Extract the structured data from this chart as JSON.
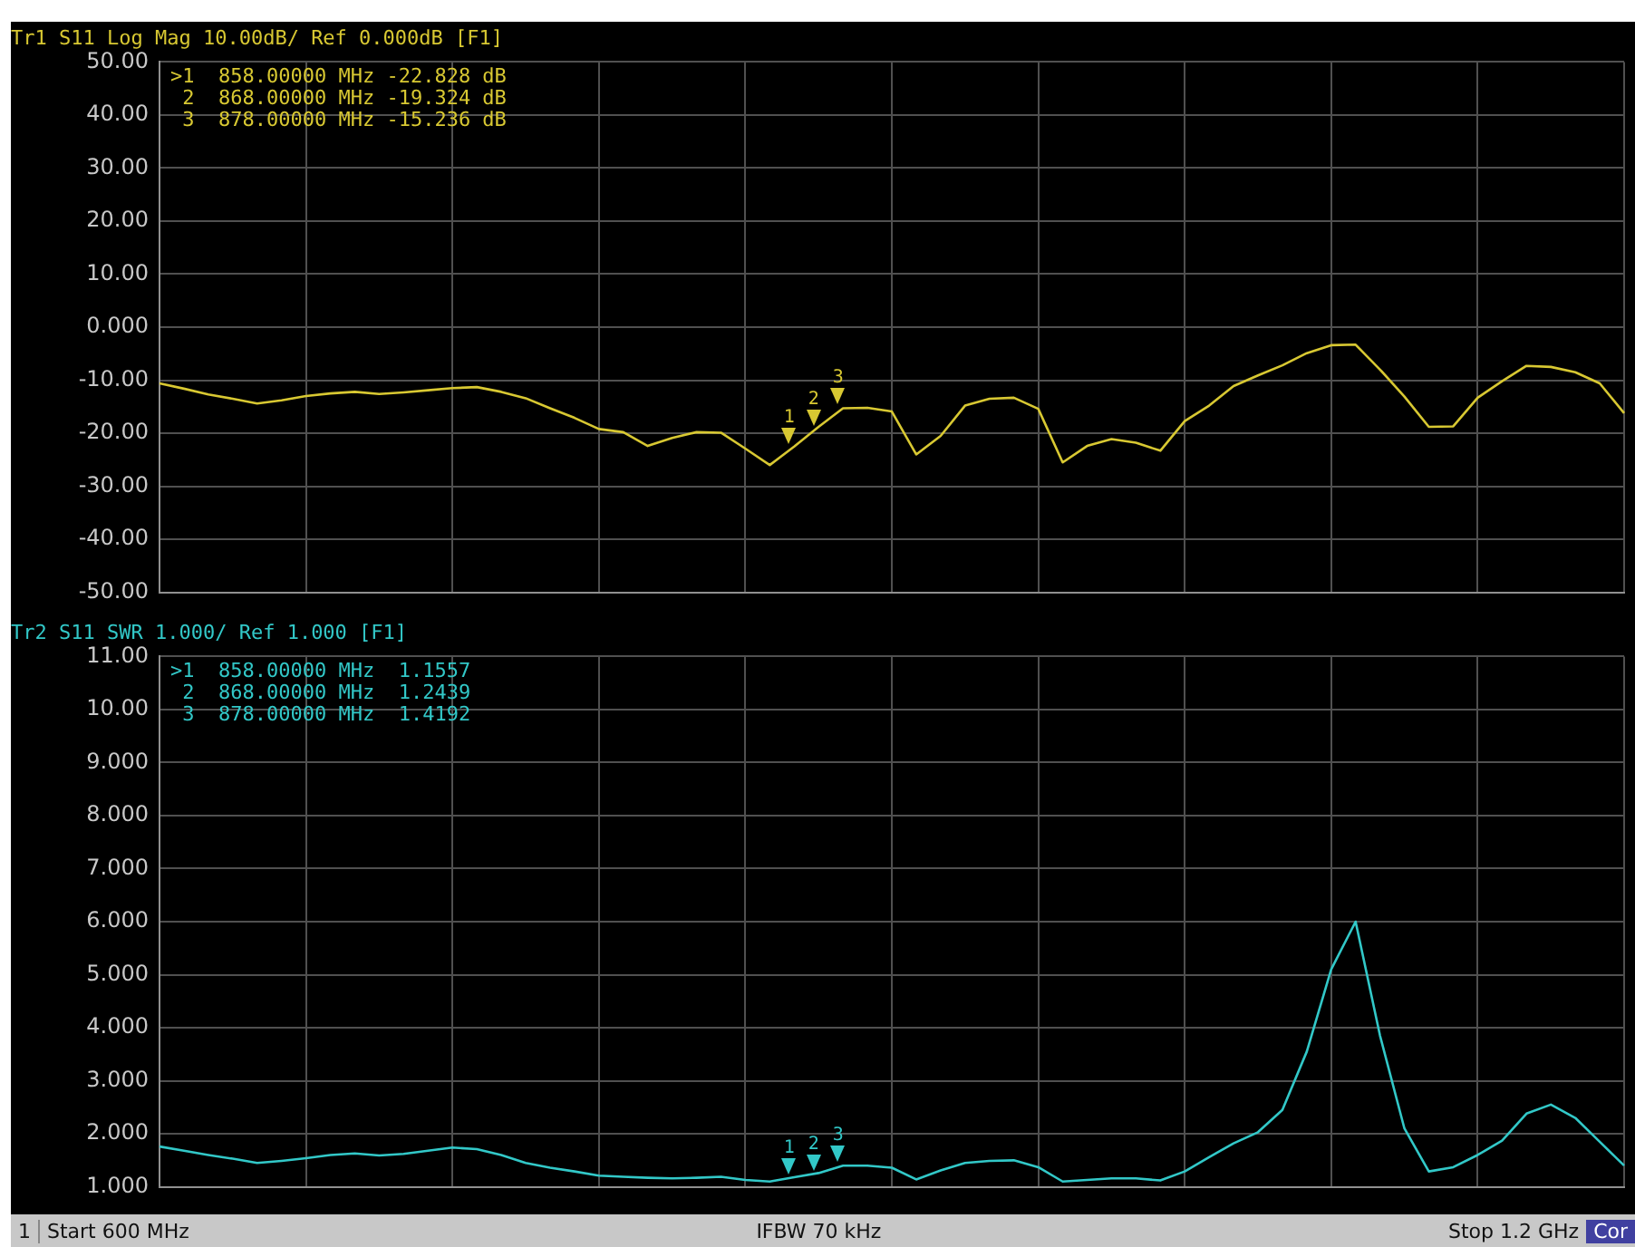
{
  "chart_data": [
    {
      "type": "line",
      "title": "Tr1 S11 Log Mag 10.00dB/ Ref 0.000dB [F1]",
      "categories": [
        null,
        null,
        null,
        null,
        null,
        null,
        null,
        null,
        null,
        null,
        null,
        null,
        null,
        null,
        null,
        null,
        null,
        null,
        null,
        null,
        null,
        null,
        null,
        null,
        null,
        null,
        null,
        null,
        null,
        null,
        null,
        null,
        null,
        null,
        null,
        null,
        null,
        null,
        null,
        null,
        null,
        null,
        null,
        null,
        null,
        null,
        null,
        null,
        null,
        null,
        null,
        null,
        null,
        null,
        null,
        null,
        null,
        null,
        null,
        null,
        null
      ],
      "ylim": [
        -50,
        50
      ],
      "yticks": [
        {
          "value": 50,
          "label": "50.00"
        },
        {
          "value": 40,
          "label": "40.00"
        },
        {
          "value": 30,
          "label": "30.00"
        },
        {
          "value": 20,
          "label": "20.00"
        },
        {
          "value": 10,
          "label": "10.00"
        },
        {
          "value": 0,
          "label": "0.000"
        },
        {
          "value": -10,
          "label": "-10.00"
        },
        {
          "value": -20,
          "label": "-20.00"
        },
        {
          "value": -30,
          "label": "-30.00"
        },
        {
          "value": -40,
          "label": "-40.00"
        },
        {
          "value": -50,
          "label": "-50.00"
        }
      ],
      "tick_labels": "y",
      "grid": true,
      "legend": false,
      "marker": "none",
      "line_style": "solid",
      "series": [
        {
          "color": "#d8c832",
          "values": [
            -10.6,
            -11.6,
            -12.7,
            -13.5,
            -14.4,
            -13.8,
            -13.0,
            -12.5,
            -12.2,
            -12.6,
            -12.3,
            -11.9,
            -11.5,
            -11.3,
            -12.2,
            -13.4,
            -15.3,
            -17.1,
            -19.2,
            -19.8,
            -22.4,
            -20.9,
            -19.8,
            -19.9,
            -22.9,
            -26.0,
            -22.5,
            -18.8,
            -15.3,
            -15.2,
            -15.9,
            -24.0,
            -20.5,
            -14.8,
            -13.5,
            -13.3,
            -15.4,
            -25.5,
            -22.4,
            -21.1,
            -21.8,
            -23.3,
            -17.7,
            -14.8,
            -11.1,
            -9.1,
            -7.2,
            -4.9,
            -3.4,
            -3.3,
            -8.0,
            -13.1,
            -18.8,
            -18.7,
            -13.3,
            -10.2,
            -7.3,
            -7.5,
            -8.5,
            -10.6,
            -16.2
          ]
        }
      ],
      "annotations": [
        ">1  858.00000 MHz -22.828 dB",
        " 2  868.00000 MHz -19.324 dB",
        " 3  878.00000 MHz -15.236 dB",
        {
          "text": "1",
          "y": -22.828
        },
        {
          "text": "2",
          "y": -19.324
        },
        {
          "text": "3",
          "y": -15.236
        }
      ]
    },
    {
      "type": "line",
      "title": "Tr2 S11 SWR 1.000/ Ref 1.000 [F1]",
      "categories": [
        null,
        null,
        null,
        null,
        null,
        null,
        null,
        null,
        null,
        null,
        null,
        null,
        null,
        null,
        null,
        null,
        null,
        null,
        null,
        null,
        null,
        null,
        null,
        null,
        null,
        null,
        null,
        null,
        null,
        null,
        null,
        null,
        null,
        null,
        null,
        null,
        null,
        null,
        null,
        null,
        null,
        null,
        null,
        null,
        null,
        null,
        null,
        null,
        null,
        null,
        null,
        null,
        null,
        null,
        null,
        null,
        null,
        null,
        null,
        null,
        null
      ],
      "ylim": [
        1,
        11
      ],
      "yticks": [
        {
          "value": 11,
          "label": "11.00"
        },
        {
          "value": 10,
          "label": "10.00"
        },
        {
          "value": 9,
          "label": "9.000"
        },
        {
          "value": 8,
          "label": "8.000"
        },
        {
          "value": 7,
          "label": "7.000"
        },
        {
          "value": 6,
          "label": "6.000"
        },
        {
          "value": 5,
          "label": "5.000"
        },
        {
          "value": 4,
          "label": "4.000"
        },
        {
          "value": 3,
          "label": "3.000"
        },
        {
          "value": 2,
          "label": "2.000"
        },
        {
          "value": 1,
          "label": "1.000"
        }
      ],
      "tick_labels": "y",
      "grid": true,
      "legend": false,
      "marker": "none",
      "line_style": "solid",
      "series": [
        {
          "color": "#32c8c8",
          "values": [
            1.76,
            1.68,
            1.6,
            1.53,
            1.45,
            1.49,
            1.54,
            1.6,
            1.63,
            1.59,
            1.62,
            1.68,
            1.74,
            1.71,
            1.6,
            1.45,
            1.36,
            1.29,
            1.21,
            1.19,
            1.17,
            1.16,
            1.17,
            1.19,
            1.13,
            1.1,
            1.18,
            1.26,
            1.4,
            1.4,
            1.36,
            1.14,
            1.31,
            1.45,
            1.49,
            1.5,
            1.37,
            1.1,
            1.13,
            1.16,
            1.16,
            1.12,
            1.29,
            1.56,
            1.82,
            2.03,
            2.45,
            3.55,
            5.1,
            6.0,
            3.85,
            2.1,
            1.29,
            1.37,
            1.6,
            1.87,
            2.38,
            2.55,
            2.3,
            1.85,
            1.4
          ]
        }
      ],
      "annotations": [
        ">1  858.00000 MHz  1.1557",
        " 2  868.00000 MHz  1.2439",
        " 3  878.00000 MHz  1.4192",
        {
          "text": "1",
          "y": 1.1557
        },
        {
          "text": "2",
          "y": 1.2439
        },
        {
          "text": "3",
          "y": 1.4192
        }
      ]
    },
    {
      "type": "other",
      "annotations": [
        "1",
        "Start 600 MHz",
        "IFBW 70 kHz",
        "Stop 1.2 GHz",
        "Cor"
      ]
    }
  ]
}
